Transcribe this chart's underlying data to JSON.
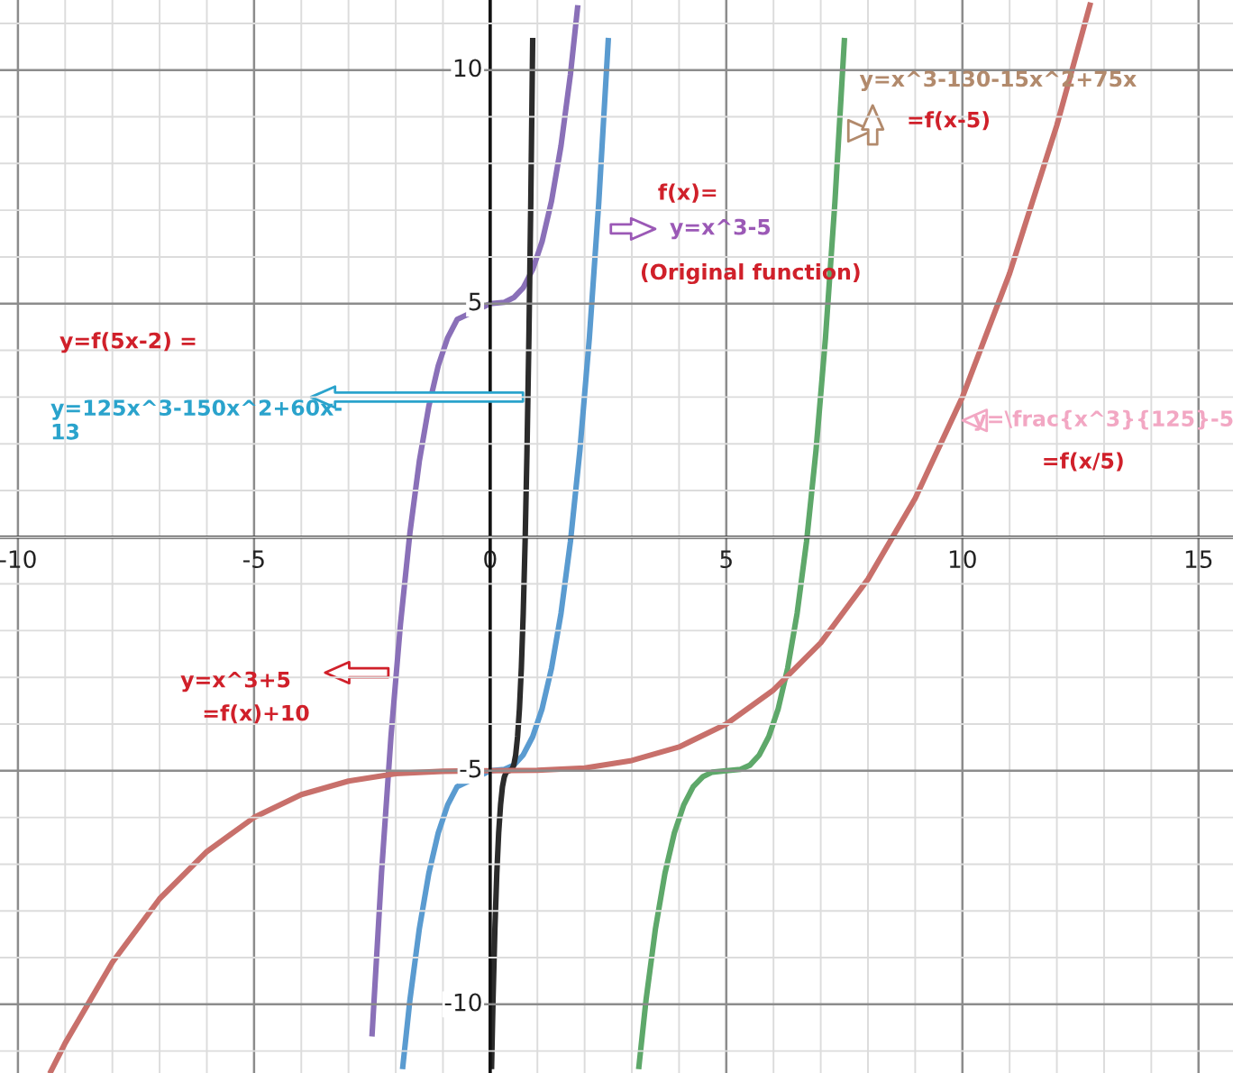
{
  "chart_data": {
    "type": "line",
    "xlim": [
      -10.38,
      15.73
    ],
    "ylim": [
      -11.47,
      11.5
    ],
    "xticks": [
      -10,
      -5,
      0,
      5,
      10,
      15
    ],
    "yticks": [
      -10,
      -5,
      5,
      10
    ],
    "grid": true,
    "marker": "none",
    "line_style": "solid",
    "series": [
      {
        "color": "#8a70b8",
        "x": [
          -2.5,
          -2.3,
          -2.1,
          -1.9,
          -1.7,
          -1.5,
          -1.3,
          -1.1,
          -0.9,
          -0.7,
          0,
          0.3,
          0.5,
          0.7,
          0.9,
          1.1,
          1.3,
          1.5,
          1.7,
          1.85
        ],
        "values": [
          -10.63,
          -7.17,
          -4.26,
          -1.86,
          0.09,
          1.63,
          2.8,
          3.67,
          4.27,
          4.66,
          5,
          5.03,
          5.13,
          5.34,
          5.73,
          6.33,
          7.2,
          8.38,
          9.91,
          11.33
        ]
      },
      {
        "color": "#5a9bd0",
        "x": [
          -1.85,
          -1.7,
          -1.5,
          -1.3,
          -1.1,
          -0.9,
          -0.7,
          0,
          0.3,
          0.5,
          0.7,
          0.9,
          1.1,
          1.3,
          1.5,
          1.7,
          1.9,
          2.1,
          2.3,
          2.5
        ],
        "values": [
          -11.33,
          -9.91,
          -8.38,
          -7.2,
          -6.33,
          -5.73,
          -5.34,
          -5,
          -4.97,
          -4.88,
          -4.66,
          -4.27,
          -3.67,
          -2.8,
          -1.63,
          -0.09,
          1.86,
          4.26,
          7.17,
          10.63
        ]
      },
      {
        "color": "#5ea86a",
        "x": [
          3.15,
          3.3,
          3.5,
          3.7,
          3.9,
          4.1,
          4.3,
          4.5,
          4.7,
          5,
          5.3,
          5.5,
          5.7,
          5.9,
          6.1,
          6.3,
          6.5,
          6.7,
          6.9,
          7.1,
          7.3,
          7.5
        ],
        "values": [
          -11.33,
          -9.91,
          -8.38,
          -7.2,
          -6.33,
          -5.73,
          -5.34,
          -5.13,
          -5.03,
          -5,
          -4.97,
          -4.88,
          -4.66,
          -4.27,
          -3.67,
          -2.8,
          -1.63,
          -0.09,
          1.86,
          4.26,
          7.17,
          10.63
        ]
      },
      {
        "color": "#2b2b2b",
        "x": [
          0.03,
          0.06,
          0.1,
          0.14,
          0.18,
          0.22,
          0.26,
          0.3,
          0.34,
          0.4,
          0.46,
          0.5,
          0.54,
          0.58,
          0.62,
          0.66,
          0.7,
          0.74,
          0.78,
          0.82,
          0.86,
          0.9
        ],
        "values": [
          -11.33,
          -9.91,
          -8.38,
          -7.2,
          -6.33,
          -5.73,
          -5.34,
          -5.13,
          -5.03,
          -5,
          -4.97,
          -4.88,
          -4.66,
          -4.27,
          -3.67,
          -2.8,
          -1.63,
          -0.09,
          1.86,
          4.26,
          7.17,
          10.63
        ]
      },
      {
        "color": "#c8706b",
        "x": [
          -9.3,
          -9,
          -8,
          -7,
          -6,
          -5,
          -4,
          -3,
          -2,
          -1,
          0,
          1,
          2,
          3,
          4,
          5,
          6,
          7,
          8,
          9,
          10,
          11,
          12,
          12.7
        ],
        "values": [
          -11.43,
          -10.83,
          -9.1,
          -7.74,
          -6.73,
          -6,
          -5.51,
          -5.22,
          -5.06,
          -5.01,
          -5,
          -4.99,
          -4.94,
          -4.78,
          -4.49,
          -4,
          -3.27,
          -2.26,
          -0.9,
          0.83,
          3,
          5.65,
          8.82,
          11.39
        ]
      }
    ],
    "annotations": [
      "f(x)=",
      "y=x^3-5",
      "(Original function)",
      "y=x^3-130-15x^2+75x",
      "=f(x-5)",
      "y=\\frac{x^3}{125}-5",
      "=f(x/5)",
      "y=f(5x-2) =",
      "y=125x^3-150x^2+60x-\n13",
      "y=x^3+5",
      "=f(x)+10"
    ]
  }
}
